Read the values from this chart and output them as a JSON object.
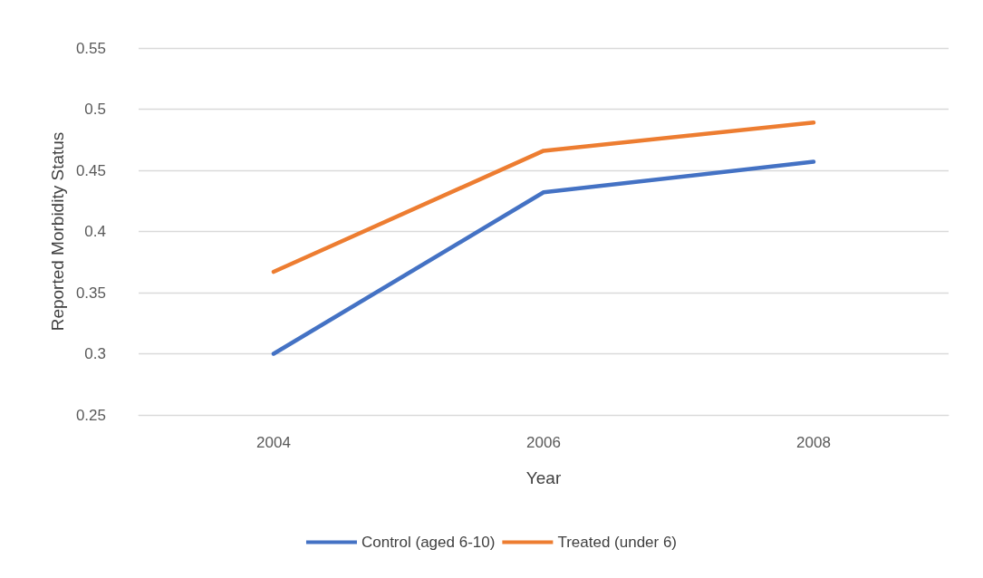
{
  "chart_data": {
    "type": "line",
    "xlabel": "Year",
    "ylabel": "Reported Morbidity Status",
    "categories": [
      "2004",
      "2006",
      "2008"
    ],
    "series": [
      {
        "name": "Control (aged 6-10)",
        "color": "#4472c4",
        "values": [
          0.3,
          0.432,
          0.457
        ]
      },
      {
        "name": "Treated (under 6)",
        "color": "#ed7d31",
        "values": [
          0.367,
          0.466,
          0.489
        ]
      }
    ],
    "ylim": [
      0.25,
      0.55
    ],
    "yticks": [
      0.25,
      0.3,
      0.35,
      0.4,
      0.45,
      0.5,
      0.55
    ],
    "grid": "y",
    "legend": "bottom",
    "marker": "none",
    "line_style": "solid"
  }
}
